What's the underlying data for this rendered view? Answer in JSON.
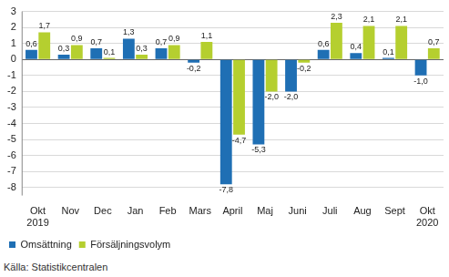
{
  "chart_data": {
    "type": "bar",
    "categories": [
      [
        "Okt",
        "2019"
      ],
      "Nov",
      "Dec",
      "Jan",
      "Feb",
      "Mars",
      "April",
      "Maj",
      "Juni",
      "Juli",
      "Aug",
      "Sept",
      [
        "Okt",
        "2020"
      ]
    ],
    "series": [
      {
        "name": "Omsättning",
        "color": "#1f6fb4",
        "values": [
          0.6,
          0.3,
          0.7,
          1.3,
          0.7,
          -0.2,
          -7.8,
          -5.3,
          -2.0,
          0.6,
          0.4,
          0.1,
          -1.0
        ],
        "value_labels": [
          "0,6",
          "0,3",
          "0,7",
          "1,3",
          "0,7",
          "-0,2",
          "-7,8",
          "-5,3",
          "-2,0",
          "0,6",
          "0,4",
          "0,1",
          "-1,0"
        ]
      },
      {
        "name": "Försäljningsvolym",
        "color": "#b5cf2f",
        "values": [
          1.7,
          0.9,
          0.1,
          0.3,
          0.9,
          1.1,
          -4.7,
          -2.0,
          -0.2,
          2.3,
          2.1,
          2.1,
          0.7
        ],
        "value_labels": [
          "1,7",
          "0,9",
          "0,1",
          "0,3",
          "0,9",
          "1,1",
          "-4,7",
          "-2,0",
          "-0,2",
          "2,3",
          "2,1",
          "2,1",
          "0,7"
        ]
      }
    ],
    "ylim": [
      -8.5,
      3
    ],
    "yticks": [
      -8,
      -7,
      -6,
      -5,
      -4,
      -3,
      -2,
      -1,
      0,
      1,
      2,
      3
    ],
    "grid": true,
    "legend": "bottom-left",
    "data_labels": true,
    "annotations": [
      "Källa: Statistikcentralen"
    ]
  }
}
